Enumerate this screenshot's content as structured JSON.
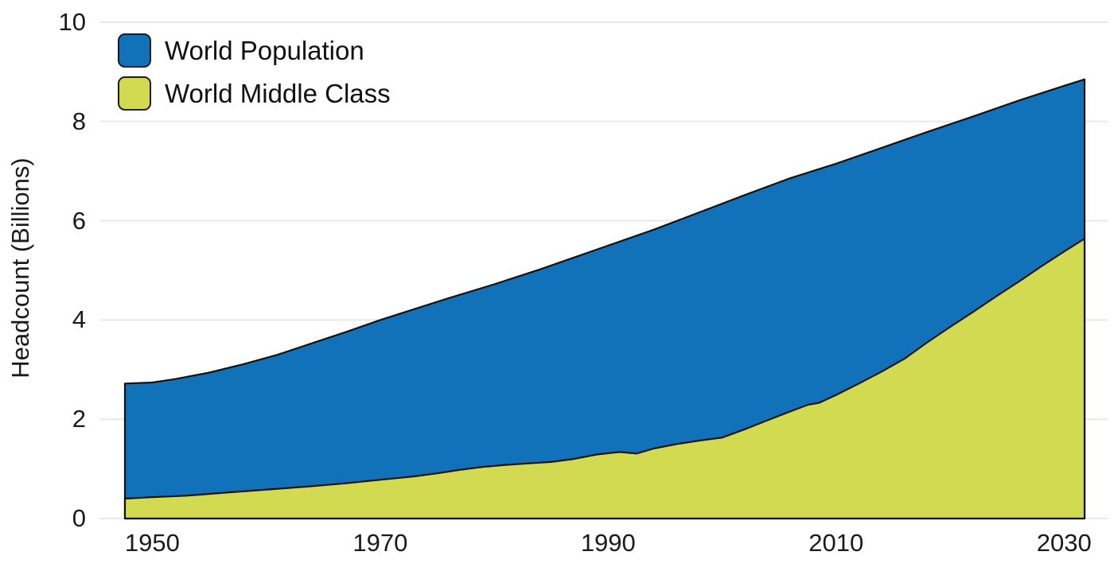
{
  "chart_data": {
    "type": "area",
    "title": "",
    "xlabel": "",
    "ylabel": "Headcount (Billions)",
    "xlim": [
      1947.6,
      2031.8
    ],
    "ylim": [
      0,
      10
    ],
    "xticks": [
      1950,
      1970,
      1990,
      2010,
      2030
    ],
    "yticks": [
      0,
      2,
      4,
      6,
      8,
      10
    ],
    "grid": true,
    "legend_position": "top-left",
    "background_color": "#ffffff",
    "gridline_color": "#e8e8e8",
    "outline_color": "#131313",
    "text_color": "#1a1a1a",
    "series": [
      {
        "name": "World Population",
        "color": "#1272b9",
        "points": [
          [
            1947.6,
            2.72
          ],
          [
            1950,
            2.74
          ],
          [
            1952,
            2.81
          ],
          [
            1955,
            2.94
          ],
          [
            1958,
            3.11
          ],
          [
            1961,
            3.3
          ],
          [
            1964,
            3.53
          ],
          [
            1967,
            3.76
          ],
          [
            1970,
            4.0
          ],
          [
            1973,
            4.22
          ],
          [
            1976,
            4.44
          ],
          [
            1980,
            4.72
          ],
          [
            1984,
            5.02
          ],
          [
            1988,
            5.34
          ],
          [
            1990,
            5.5
          ],
          [
            1994,
            5.82
          ],
          [
            1998,
            6.17
          ],
          [
            2002,
            6.52
          ],
          [
            2006,
            6.86
          ],
          [
            2010,
            7.15
          ],
          [
            2014,
            7.47
          ],
          [
            2018,
            7.79
          ],
          [
            2022,
            8.1
          ],
          [
            2026,
            8.42
          ],
          [
            2030,
            8.72
          ],
          [
            2031.8,
            8.85
          ]
        ]
      },
      {
        "name": "World Middle Class",
        "color": "#d2da52",
        "points": [
          [
            1947.6,
            0.4
          ],
          [
            1950,
            0.43
          ],
          [
            1953,
            0.46
          ],
          [
            1957,
            0.53
          ],
          [
            1961,
            0.6
          ],
          [
            1964,
            0.65
          ],
          [
            1967,
            0.71
          ],
          [
            1970,
            0.78
          ],
          [
            1973,
            0.85
          ],
          [
            1975,
            0.91
          ],
          [
            1977,
            0.98
          ],
          [
            1979,
            1.04
          ],
          [
            1981,
            1.08
          ],
          [
            1983,
            1.11
          ],
          [
            1985,
            1.14
          ],
          [
            1987,
            1.2
          ],
          [
            1989,
            1.29
          ],
          [
            1991,
            1.34
          ],
          [
            1992.5,
            1.31
          ],
          [
            1994,
            1.41
          ],
          [
            1996,
            1.5
          ],
          [
            1998,
            1.57
          ],
          [
            2000,
            1.63
          ],
          [
            2002,
            1.8
          ],
          [
            2004,
            1.98
          ],
          [
            2006,
            2.16
          ],
          [
            2007.5,
            2.29
          ],
          [
            2008.5,
            2.33
          ],
          [
            2010,
            2.49
          ],
          [
            2012,
            2.72
          ],
          [
            2014,
            2.96
          ],
          [
            2016,
            3.22
          ],
          [
            2018,
            3.55
          ],
          [
            2020,
            3.86
          ],
          [
            2022,
            4.16
          ],
          [
            2024,
            4.47
          ],
          [
            2026,
            4.77
          ],
          [
            2028,
            5.08
          ],
          [
            2030,
            5.38
          ],
          [
            2031.8,
            5.64
          ]
        ]
      }
    ]
  }
}
